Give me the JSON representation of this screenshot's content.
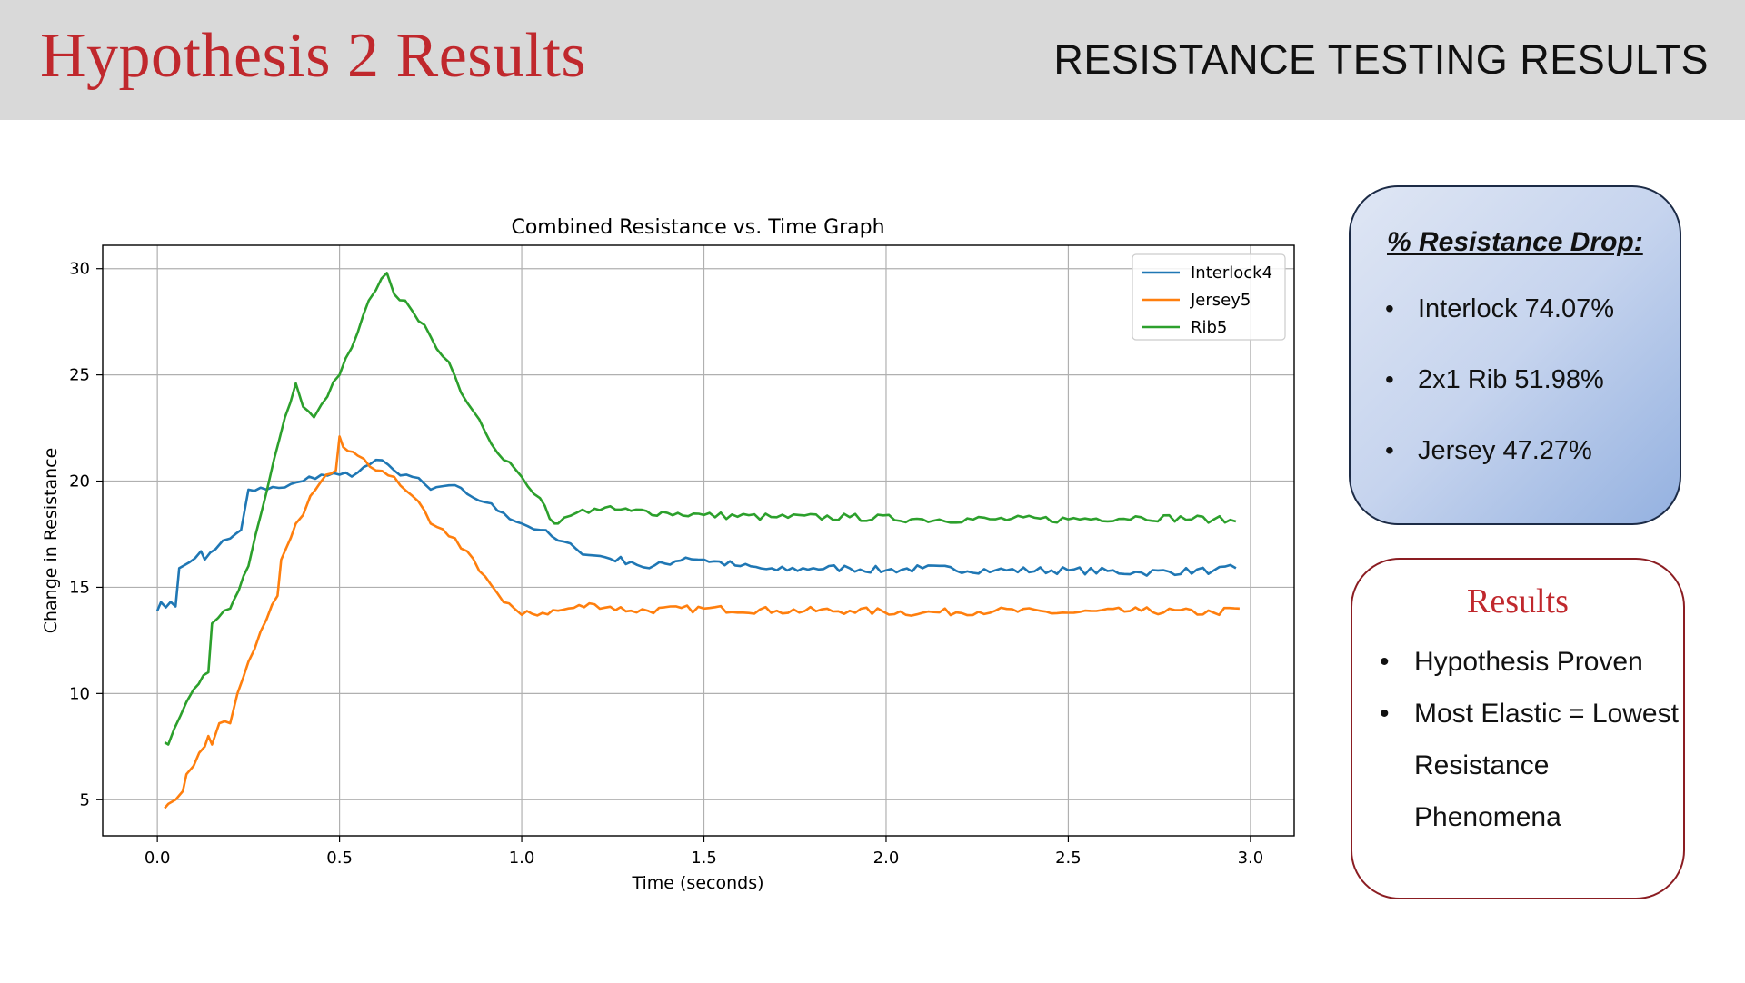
{
  "header": {
    "title": "Hypothesis 2 Results",
    "subtitle": "RESISTANCE TESTING RESULTS"
  },
  "drop_card": {
    "heading": "% Resistance Drop:",
    "items": [
      "Interlock 74.07%",
      "2x1 Rib  51.98%",
      "Jersey  47.27%"
    ]
  },
  "results_card": {
    "heading": "Results",
    "items": [
      "Hypothesis Proven",
      "Most Elastic = Lowest Resistance Phenomena"
    ]
  },
  "colors": {
    "accent": "#c0282d",
    "Interlock4": "#1f77b4",
    "Jersey5": "#ff7f0e",
    "Rib5": "#2ca02c"
  },
  "chart_data": {
    "type": "line",
    "title": "Combined Resistance vs. Time Graph",
    "xlabel": "Time (seconds)",
    "ylabel": "Change in Resistance",
    "xlim": [
      -0.15,
      3.12
    ],
    "ylim": [
      3.3,
      31.1
    ],
    "xticks": [
      0.0,
      0.5,
      1.0,
      1.5,
      2.0,
      2.5,
      3.0
    ],
    "xtick_labels": [
      "0.0",
      "0.5",
      "1.0",
      "1.5",
      "2.0",
      "2.5",
      "3.0"
    ],
    "yticks": [
      5,
      10,
      15,
      20,
      25,
      30
    ],
    "ytick_labels": [
      "5",
      "10",
      "15",
      "20",
      "25",
      "30"
    ],
    "grid": true,
    "legend_position": "top-right",
    "series": [
      {
        "name": "Interlock4",
        "x": [
          0.0,
          0.01,
          0.05,
          0.06,
          0.07,
          0.12,
          0.13,
          0.16,
          0.18,
          0.2,
          0.23,
          0.25,
          0.3,
          0.35,
          0.4,
          0.45,
          0.5,
          0.55,
          0.6,
          0.65,
          0.7,
          0.75,
          0.8,
          0.85,
          0.9,
          0.95,
          1.0,
          1.05,
          1.1,
          1.15,
          1.2,
          1.3,
          1.35,
          1.45,
          1.5,
          1.6,
          1.7,
          1.8,
          1.9,
          2.0,
          2.1,
          2.3,
          2.5,
          2.7,
          2.9,
          2.96
        ],
        "y": [
          13.9,
          14.3,
          14.1,
          15.9,
          16.0,
          16.7,
          16.3,
          16.8,
          17.2,
          17.3,
          17.7,
          19.6,
          19.6,
          19.7,
          20.0,
          20.3,
          20.3,
          20.4,
          21.0,
          20.5,
          20.2,
          19.6,
          19.8,
          19.4,
          19.0,
          18.5,
          18.0,
          17.7,
          17.2,
          16.8,
          16.5,
          16.2,
          15.9,
          16.4,
          16.3,
          16.0,
          15.8,
          15.9,
          15.9,
          15.8,
          15.9,
          15.8,
          15.8,
          15.7,
          15.8,
          15.9
        ]
      },
      {
        "name": "Jersey5",
        "x": [
          0.02,
          0.03,
          0.05,
          0.07,
          0.08,
          0.1,
          0.13,
          0.14,
          0.15,
          0.17,
          0.2,
          0.22,
          0.25,
          0.3,
          0.33,
          0.34,
          0.38,
          0.4,
          0.42,
          0.45,
          0.49,
          0.5,
          0.51,
          0.55,
          0.6,
          0.65,
          0.7,
          0.75,
          0.8,
          0.85,
          0.9,
          0.95,
          0.98,
          1.0,
          1.1,
          1.2,
          1.3,
          1.5,
          1.7,
          1.9,
          2.1,
          2.3,
          2.5,
          2.7,
          2.9,
          2.97
        ],
        "y": [
          4.6,
          4.8,
          5.0,
          5.4,
          6.2,
          6.6,
          7.5,
          8.0,
          7.6,
          8.6,
          8.6,
          10.0,
          11.5,
          13.5,
          14.6,
          16.3,
          18.0,
          18.4,
          19.3,
          20.0,
          20.5,
          22.1,
          21.6,
          21.2,
          20.5,
          20.2,
          19.3,
          18.0,
          17.4,
          16.7,
          15.5,
          14.3,
          14.0,
          13.7,
          13.9,
          14.2,
          13.9,
          14.0,
          13.9,
          13.9,
          13.8,
          13.9,
          13.8,
          13.9,
          13.8,
          14.0
        ]
      },
      {
        "name": "Rib5",
        "x": [
          0.02,
          0.03,
          0.08,
          0.1,
          0.14,
          0.15,
          0.2,
          0.21,
          0.25,
          0.27,
          0.3,
          0.32,
          0.35,
          0.38,
          0.4,
          0.43,
          0.45,
          0.5,
          0.55,
          0.58,
          0.6,
          0.63,
          0.65,
          0.68,
          0.7,
          0.75,
          0.8,
          0.85,
          0.9,
          0.95,
          1.0,
          1.05,
          1.09,
          1.1,
          1.15,
          1.2,
          1.3,
          1.4,
          1.5,
          1.7,
          1.9,
          2.1,
          2.3,
          2.5,
          2.7,
          2.9,
          2.96
        ],
        "y": [
          7.7,
          7.6,
          9.6,
          10.2,
          11.0,
          13.3,
          14.0,
          14.4,
          16.0,
          17.5,
          19.5,
          21.0,
          23.0,
          24.6,
          23.5,
          23.0,
          23.6,
          25.0,
          27.0,
          28.5,
          29.0,
          29.8,
          28.8,
          28.5,
          28.0,
          26.8,
          25.6,
          23.7,
          22.3,
          21.0,
          20.2,
          19.2,
          18.0,
          18.0,
          18.5,
          18.7,
          18.6,
          18.5,
          18.4,
          18.3,
          18.3,
          18.2,
          18.2,
          18.2,
          18.3,
          18.2,
          18.1
        ]
      }
    ]
  }
}
